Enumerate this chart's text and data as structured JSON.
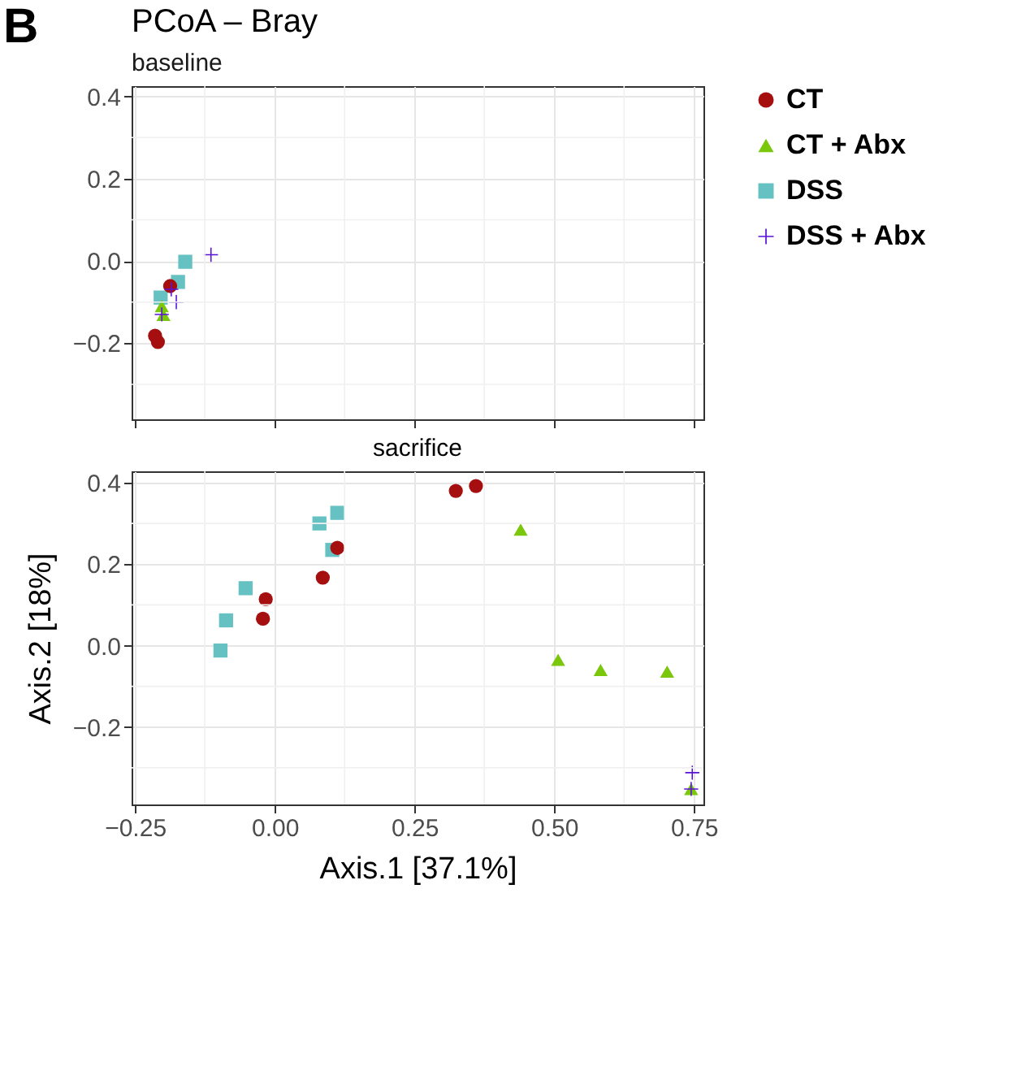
{
  "chart_data": [
    {
      "type": "scatter",
      "title": "PCoA – Bray",
      "subtitle": "baseline",
      "annotations": [
        "B"
      ],
      "xlim": [
        -0.256,
        0.767
      ],
      "xticks": [
        {
          "value": -0.25,
          "label": null
        },
        {
          "value": 0,
          "label": null
        },
        {
          "value": 0.25,
          "label": null
        },
        {
          "value": 0.5,
          "label": null
        },
        {
          "value": 0.75,
          "label": null
        }
      ],
      "ylim": [
        -0.385,
        0.425
      ],
      "yticks": [
        {
          "value": -0.2,
          "label": "−0.2"
        },
        {
          "value": 0,
          "label": "0.0"
        },
        {
          "value": 0.2,
          "label": "0.2"
        },
        {
          "value": 0.4,
          "label": "0.4"
        }
      ],
      "tick_labels": "y",
      "grid": true,
      "legend": "right",
      "series": [
        {
          "name": "CT",
          "color": "#a50f0f",
          "marker": "circle",
          "x": [
            -0.187,
            -0.214,
            -0.209
          ],
          "values": [
            -0.061,
            -0.182,
            -0.197
          ]
        },
        {
          "name": "CT + Abx",
          "color": "#7ac70c",
          "marker": "triangle",
          "x": [
            -0.199,
            -0.202
          ],
          "values": [
            -0.131,
            -0.11
          ]
        },
        {
          "name": "DSS",
          "color": "#66c2c2",
          "marker": "square",
          "x": [
            -0.16,
            -0.173,
            -0.204
          ],
          "values": [
            -0.002,
            -0.051,
            -0.089
          ]
        },
        {
          "name": "DSS + Abx",
          "color": "#5a12d6",
          "marker": "cross",
          "x": [
            -0.114,
            -0.176,
            -0.202,
            -0.185
          ],
          "values": [
            0.015,
            -0.1,
            -0.13,
            -0.069
          ]
        }
      ]
    },
    {
      "type": "scatter",
      "title": "sacrifice",
      "xlabel": "Axis.1   [37.1%]",
      "ylabel": "Axis.2   [18%]",
      "xlim": [
        -0.256,
        0.767
      ],
      "xticks": [
        {
          "value": -0.25,
          "label": "−0.25"
        },
        {
          "value": 0,
          "label": "0.00"
        },
        {
          "value": 0.25,
          "label": "0.25"
        },
        {
          "value": 0.5,
          "label": "0.50"
        },
        {
          "value": 0.75,
          "label": "0.75"
        }
      ],
      "ylim": [
        -0.39,
        0.428
      ],
      "yticks": [
        {
          "value": -0.2,
          "label": "−0.2"
        },
        {
          "value": 0,
          "label": "0.0"
        },
        {
          "value": 0.2,
          "label": "0.2"
        },
        {
          "value": 0.4,
          "label": "0.4"
        }
      ],
      "grid": true,
      "legend": "right",
      "series": [
        {
          "name": "CT",
          "color": "#a50f0f",
          "marker": "circle",
          "x": [
            0.324,
            0.36,
            0.112,
            0.086,
            -0.016,
            -0.021
          ],
          "values": [
            0.38,
            0.392,
            0.24,
            0.167,
            0.114,
            0.066
          ]
        },
        {
          "name": "CT + Abx",
          "color": "#7ac70c",
          "marker": "triangle",
          "x": [
            0.44,
            0.507,
            0.583,
            0.702,
            0.745
          ],
          "values": [
            0.285,
            -0.035,
            -0.06,
            -0.064,
            -0.352
          ]
        },
        {
          "name": "DSS",
          "color": "#66c2c2",
          "marker": "square",
          "x": [
            0.112,
            0.08,
            0.103,
            -0.052,
            -0.087,
            -0.097
          ],
          "values": [
            0.326,
            0.3,
            0.235,
            0.141,
            0.062,
            -0.012
          ]
        },
        {
          "name": "DSS + Abx",
          "color": "#5a12d6",
          "marker": "cross",
          "x": [
            0.747,
            0.745
          ],
          "values": [
            -0.312,
            -0.352
          ]
        }
      ]
    }
  ]
}
